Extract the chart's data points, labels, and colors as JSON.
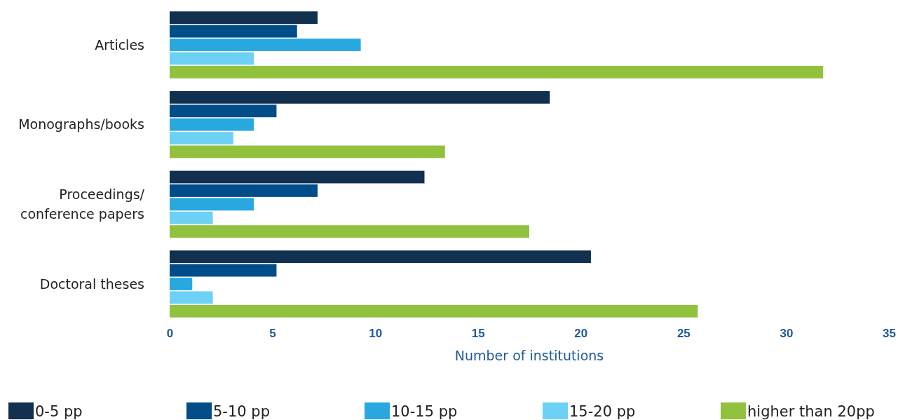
{
  "chart_data": {
    "type": "bar",
    "orientation": "horizontal",
    "xlabel": "Number of institutions",
    "categories": [
      "Articles",
      "Monographs/books",
      "Proceedings/ conference papers",
      "Doctoral theses"
    ],
    "xlim": [
      0,
      35
    ],
    "xticks": [
      0,
      5,
      10,
      15,
      20,
      25,
      30,
      35
    ],
    "grid": false,
    "legend": "bottom",
    "series": [
      {
        "name": "0-5 pp",
        "color": "#12304f",
        "values": [
          7.2,
          18.5,
          12.4,
          20.5
        ]
      },
      {
        "name": "5-10 pp",
        "color": "#004d8a",
        "values": [
          6.2,
          5.2,
          7.2,
          5.2
        ]
      },
      {
        "name": "10-15 pp",
        "color": "#29a8e0",
        "values": [
          9.3,
          4.1,
          4.1,
          1.1
        ]
      },
      {
        "name": "15-20 pp",
        "color": "#6dd0f5",
        "values": [
          4.1,
          3.1,
          2.1,
          2.1
        ]
      },
      {
        "name": "higher than 20pp",
        "color": "#92c13e",
        "values": [
          31.8,
          13.4,
          17.5,
          25.7
        ]
      }
    ]
  }
}
